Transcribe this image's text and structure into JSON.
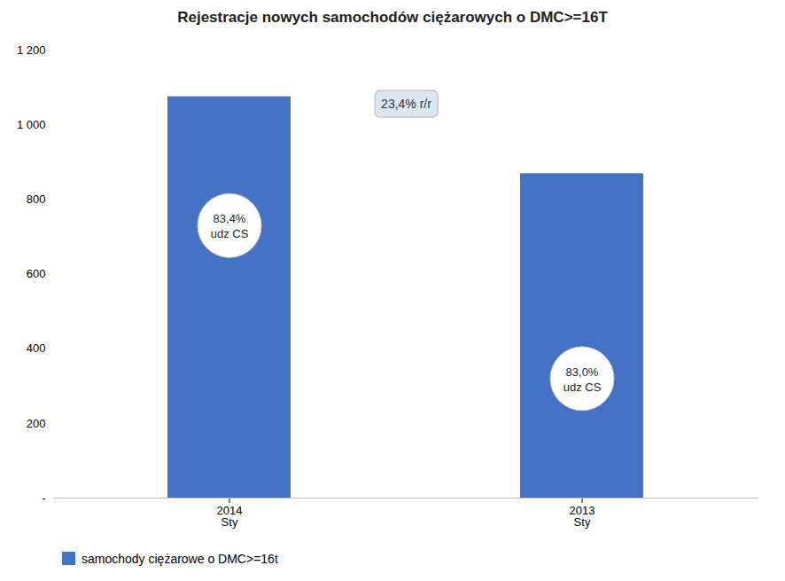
{
  "chart_data": {
    "type": "bar",
    "title": "Rejestracje nowych samochodów ciężarowych o DMC>=16T",
    "categories": [
      "2014\nSty",
      "2013\nSty"
    ],
    "series": [
      {
        "name": "samochody ciężarowe o DMC>=16t",
        "color": "#4472C4",
        "values": [
          1075,
          869
        ]
      }
    ],
    "ylim": [
      0,
      1200
    ],
    "yticks": [
      {
        "value": 0,
        "label": "-"
      },
      200,
      400,
      600,
      800,
      {
        "value": 1000,
        "label": "1 000"
      },
      {
        "value": 1200,
        "label": "1 200"
      }
    ],
    "grid": false,
    "legend": "lower left",
    "annotations": [
      {
        "text": "83,4%\nudz CS",
        "x": "2014\nSty",
        "y": 730
      },
      {
        "text": "83,0%\nudz CS",
        "x": "2013\nSty",
        "y": 320
      },
      {
        "text": "23,4% r/r",
        "y": 1055
      }
    ]
  }
}
